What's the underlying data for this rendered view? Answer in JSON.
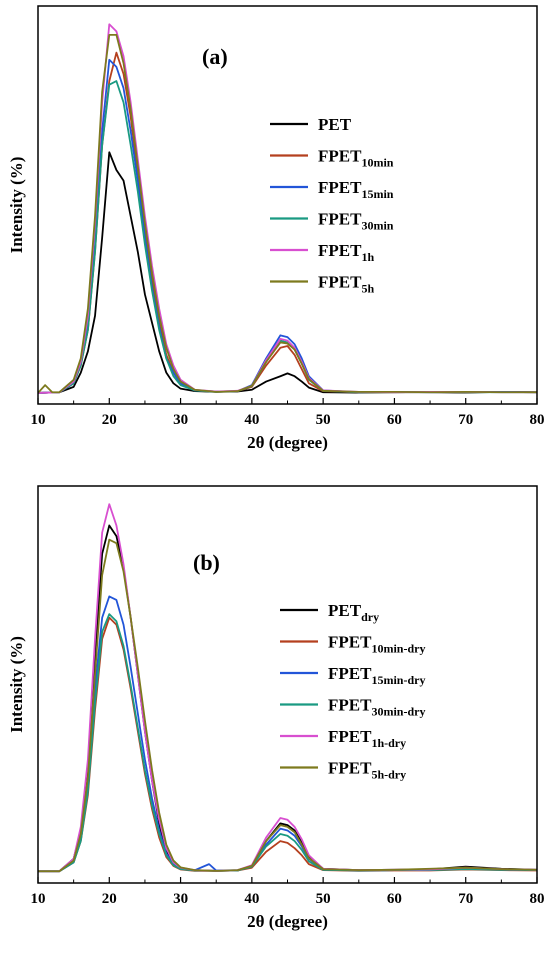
{
  "chart_data": [
    {
      "type": "line",
      "panel_label": "(a)",
      "xlabel": "2θ (degree)",
      "ylabel": "Intensity (%)",
      "xlim": [
        10,
        80
      ],
      "xticks": [
        "10",
        "20",
        "30",
        "40",
        "50",
        "60",
        "70",
        "80"
      ],
      "y_tick_labels": false,
      "grid": false,
      "legend_position": "right",
      "series": [
        {
          "name": "PET",
          "sub": "",
          "color": "#000000",
          "x": [
            10,
            13,
            15,
            16,
            17,
            18,
            19,
            20,
            21,
            22,
            23,
            24,
            25,
            26,
            27,
            28,
            29,
            30,
            32,
            35,
            38,
            40,
            42,
            44,
            45,
            46,
            47,
            48,
            50,
            55,
            60,
            65,
            70,
            75,
            80
          ],
          "y": [
            0.3,
            0.5,
            2,
            6,
            12,
            22,
            44,
            68,
            63,
            60,
            50,
            40,
            28,
            20,
            12,
            6,
            3,
            1.5,
            0.8,
            0.6,
            0.7,
            1.2,
            3.5,
            5,
            5.8,
            5,
            3.5,
            1.8,
            0.5,
            0.4,
            0.5,
            0.5,
            0.4,
            0.6,
            0.5
          ]
        },
        {
          "name": "FPET",
          "sub": "10min",
          "color": "#b5401f",
          "x": [
            10,
            13,
            15,
            16,
            17,
            18,
            19,
            20,
            21,
            22,
            23,
            24,
            25,
            26,
            27,
            28,
            29,
            30,
            32,
            35,
            38,
            40,
            42,
            44,
            45,
            46,
            47,
            48,
            50,
            55,
            60,
            65,
            70,
            75,
            80
          ],
          "y": [
            0.3,
            0.5,
            3,
            8,
            18,
            40,
            70,
            88,
            96,
            90,
            78,
            62,
            46,
            32,
            20,
            11,
            6,
            3,
            1,
            0.7,
            0.8,
            2,
            8,
            13,
            13.5,
            11,
            7,
            3,
            0.8,
            0.5,
            0.5,
            0.6,
            0.5,
            0.6,
            0.5
          ]
        },
        {
          "name": "FPET",
          "sub": "15min",
          "color": "#2255d8",
          "x": [
            10,
            13,
            15,
            16,
            17,
            18,
            19,
            20,
            21,
            22,
            23,
            24,
            25,
            26,
            27,
            28,
            29,
            30,
            32,
            35,
            38,
            40,
            42,
            44,
            45,
            46,
            47,
            48,
            50,
            55,
            60,
            65,
            70,
            75,
            80
          ],
          "y": [
            0.3,
            0.5,
            3,
            9,
            20,
            42,
            74,
            94,
            92,
            86,
            74,
            60,
            44,
            30,
            19,
            10,
            6,
            3,
            1,
            0.7,
            0.8,
            2.5,
            10,
            16.5,
            16,
            14,
            10,
            5,
            1,
            0.5,
            0.6,
            0.5,
            0.6,
            0.6,
            0.5
          ]
        },
        {
          "name": "FPET",
          "sub": "30min",
          "color": "#1a9a82",
          "x": [
            10,
            13,
            15,
            16,
            17,
            18,
            19,
            20,
            21,
            22,
            23,
            24,
            25,
            26,
            27,
            28,
            29,
            30,
            32,
            35,
            38,
            40,
            42,
            44,
            45,
            46,
            47,
            48,
            50,
            55,
            60,
            65,
            70,
            75,
            80
          ],
          "y": [
            0.3,
            0.5,
            3,
            8,
            18,
            40,
            70,
            87,
            88,
            82,
            70,
            57,
            42,
            29,
            18,
            10,
            5,
            2.5,
            1,
            0.6,
            0.8,
            2.2,
            9,
            15,
            14.5,
            12.5,
            8.5,
            4,
            0.9,
            0.5,
            0.5,
            0.6,
            0.5,
            0.5,
            0.5
          ]
        },
        {
          "name": "FPET",
          "sub": "1h",
          "color": "#d84fd0",
          "x": [
            10,
            13,
            15,
            16,
            17,
            18,
            19,
            20,
            21,
            22,
            23,
            24,
            25,
            26,
            27,
            28,
            29,
            30,
            32,
            35,
            38,
            40,
            42,
            44,
            45,
            46,
            47,
            48,
            50,
            55,
            60,
            65,
            70,
            75,
            80
          ],
          "y": [
            0.3,
            0.5,
            3.5,
            9,
            22,
            48,
            82,
            104,
            102,
            95,
            82,
            66,
            50,
            36,
            24,
            14,
            8,
            4,
            1.2,
            0.7,
            0.9,
            2.3,
            9.5,
            15.5,
            15,
            13,
            9,
            4.5,
            1,
            0.6,
            0.5,
            0.6,
            0.6,
            0.5,
            0.5
          ]
        },
        {
          "name": "FPET",
          "sub": "5h",
          "color": "#7d7a1e",
          "x": [
            10,
            11,
            12,
            13,
            15,
            16,
            17,
            18,
            19,
            20,
            21,
            22,
            23,
            24,
            25,
            26,
            27,
            28,
            29,
            30,
            32,
            35,
            38,
            40,
            42,
            44,
            45,
            46,
            47,
            48,
            50,
            55,
            60,
            65,
            70,
            75,
            80
          ],
          "y": [
            0.3,
            2.5,
            0.5,
            0.5,
            4,
            10,
            24,
            50,
            85,
            101,
            101,
            93,
            80,
            64,
            48,
            34,
            22,
            13,
            7,
            3.5,
            1.2,
            0.6,
            0.8,
            2.3,
            9,
            14.5,
            14.2,
            12.5,
            8.5,
            4.2,
            0.9,
            0.6,
            0.6,
            0.5,
            0.6,
            0.5,
            0.5
          ]
        }
      ]
    },
    {
      "type": "line",
      "panel_label": "(b)",
      "xlabel": "2θ (degree)",
      "ylabel": "Intensity (%)",
      "xlim": [
        10,
        80
      ],
      "xticks": [
        "10",
        "20",
        "30",
        "40",
        "50",
        "60",
        "70",
        "80"
      ],
      "y_tick_labels": false,
      "grid": false,
      "legend_position": "right",
      "series": [
        {
          "name": "PET",
          "sub": "dry",
          "color": "#000000",
          "x": [
            10,
            13,
            15,
            16,
            17,
            18,
            19,
            20,
            21,
            22,
            23,
            24,
            25,
            26,
            27,
            28,
            29,
            30,
            32,
            35,
            38,
            40,
            42,
            44,
            45,
            46,
            47,
            48,
            50,
            55,
            60,
            65,
            70,
            75,
            80
          ],
          "y": [
            0.5,
            0.5,
            4,
            12,
            30,
            62,
            90,
            98,
            95,
            86,
            72,
            56,
            40,
            26,
            14,
            6,
            2.5,
            1.2,
            0.8,
            0.6,
            0.7,
            2,
            9,
            14,
            13.5,
            12,
            8.5,
            4.5,
            1.2,
            0.8,
            0.9,
            1,
            1.8,
            1.2,
            0.9
          ]
        },
        {
          "name": "FPET",
          "sub": "10min-dry",
          "color": "#b5401f",
          "x": [
            10,
            13,
            15,
            16,
            17,
            18,
            19,
            20,
            21,
            22,
            23,
            24,
            25,
            26,
            27,
            28,
            29,
            30,
            32,
            35,
            38,
            40,
            42,
            44,
            45,
            46,
            47,
            48,
            50,
            55,
            60,
            65,
            70,
            75,
            80
          ],
          "y": [
            0.5,
            0.5,
            3,
            9,
            22,
            46,
            66,
            72,
            70,
            63,
            52,
            40,
            28,
            18,
            10,
            4.5,
            2,
            1,
            0.6,
            0.6,
            0.7,
            1.5,
            6,
            9,
            8.5,
            7,
            5,
            2.5,
            0.8,
            0.6,
            0.7,
            0.7,
            1,
            0.8,
            0.7
          ]
        },
        {
          "name": "FPET",
          "sub": "15min-dry",
          "color": "#2255d8",
          "x": [
            10,
            13,
            15,
            16,
            17,
            18,
            19,
            20,
            21,
            22,
            23,
            24,
            25,
            26,
            27,
            28,
            29,
            30,
            32,
            34,
            35,
            38,
            40,
            42,
            44,
            45,
            46,
            47,
            48,
            50,
            55,
            60,
            65,
            70,
            75,
            80
          ],
          "y": [
            0.5,
            0.5,
            3,
            10,
            24,
            52,
            72,
            78,
            77,
            70,
            58,
            45,
            32,
            21,
            12,
            5.5,
            2.5,
            1.2,
            0.8,
            2.5,
            0.7,
            0.8,
            2,
            8,
            12.5,
            12,
            10.5,
            7.5,
            4,
            1,
            0.7,
            0.8,
            0.9,
            1.2,
            1,
            0.8
          ]
        },
        {
          "name": "FPET",
          "sub": "30min-dry",
          "color": "#1a9a82",
          "x": [
            10,
            13,
            15,
            16,
            17,
            18,
            19,
            20,
            21,
            22,
            23,
            24,
            25,
            26,
            27,
            28,
            29,
            30,
            32,
            35,
            38,
            40,
            42,
            44,
            45,
            46,
            47,
            48,
            50,
            55,
            60,
            65,
            70,
            75,
            80
          ],
          "y": [
            0.5,
            0.5,
            3,
            9,
            23,
            48,
            68,
            73,
            71,
            64,
            53,
            41,
            29,
            19,
            11,
            5,
            2.2,
            1.1,
            0.7,
            0.6,
            0.7,
            1.8,
            7.5,
            11,
            10.5,
            9,
            6.5,
            3.3,
            0.9,
            0.7,
            0.8,
            0.8,
            1.1,
            0.9,
            0.8
          ]
        },
        {
          "name": "FPET",
          "sub": "1h-dry",
          "color": "#d84fd0",
          "x": [
            10,
            13,
            15,
            16,
            17,
            18,
            19,
            20,
            21,
            22,
            23,
            24,
            25,
            26,
            27,
            28,
            29,
            30,
            32,
            35,
            38,
            40,
            42,
            44,
            45,
            46,
            47,
            48,
            50,
            55,
            60,
            65,
            70,
            75,
            80
          ],
          "y": [
            0.5,
            0.5,
            4,
            13,
            32,
            66,
            96,
            104,
            98,
            87,
            72,
            56,
            40,
            26,
            15,
            7,
            3,
            1.5,
            0.8,
            0.6,
            0.8,
            2.2,
            10,
            15.5,
            15,
            13,
            9.5,
            5,
            1.2,
            0.8,
            0.9,
            1,
            1.5,
            1.1,
            0.9
          ]
        },
        {
          "name": "FPET",
          "sub": "5h-dry",
          "color": "#7d7a1e",
          "x": [
            10,
            13,
            15,
            16,
            17,
            18,
            19,
            20,
            21,
            22,
            23,
            24,
            25,
            26,
            27,
            28,
            29,
            30,
            32,
            35,
            38,
            40,
            42,
            44,
            45,
            46,
            47,
            48,
            50,
            55,
            60,
            65,
            70,
            75,
            80
          ],
          "y": [
            0.5,
            0.5,
            3.5,
            11,
            27,
            56,
            84,
            94,
            93,
            85,
            72,
            58,
            43,
            29,
            17,
            8,
            3.5,
            1.6,
            0.8,
            0.6,
            0.8,
            2,
            9,
            13.5,
            13,
            11.5,
            8,
            4.2,
            1.1,
            0.8,
            0.9,
            1.2,
            1.5,
            1.1,
            0.9
          ]
        }
      ]
    }
  ]
}
